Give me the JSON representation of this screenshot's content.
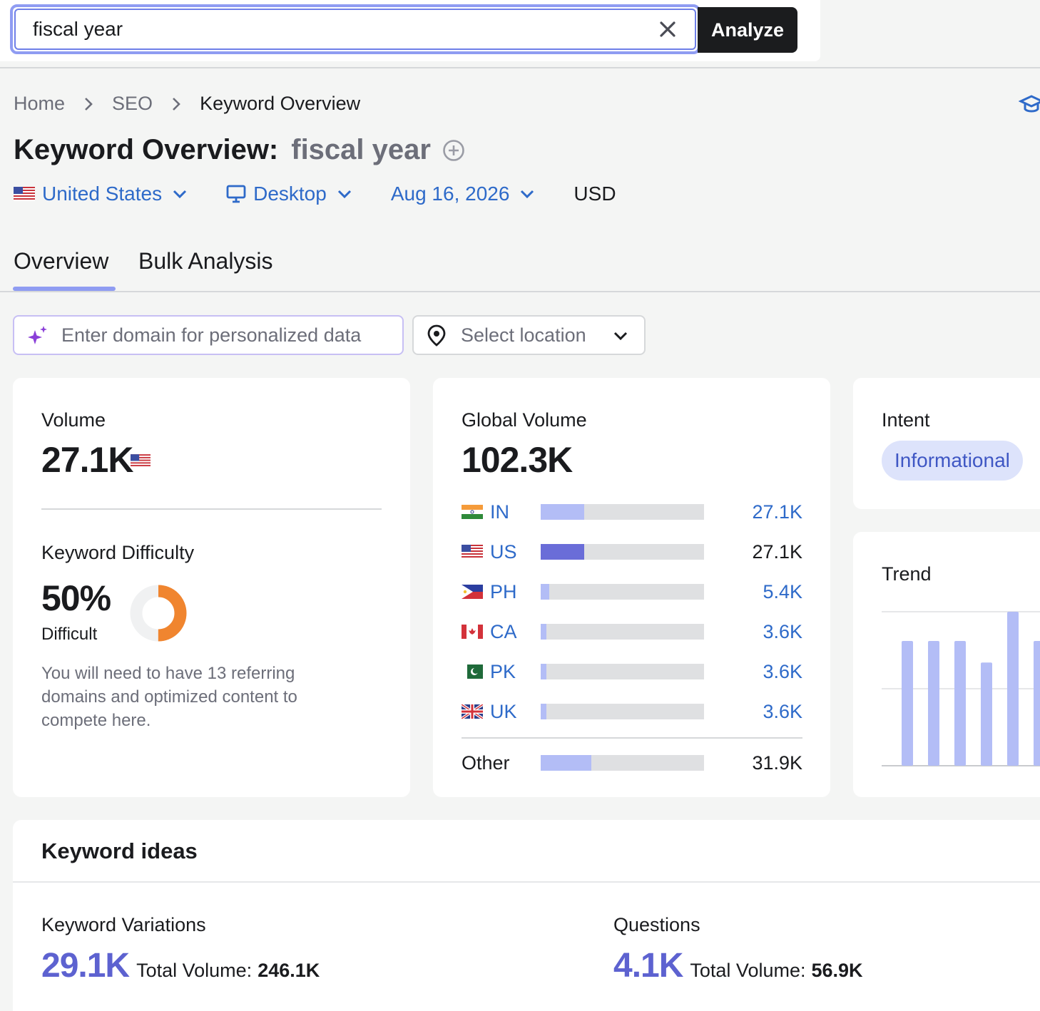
{
  "search": {
    "value": "fiscal year",
    "button": "Analyze"
  },
  "breadcrumb": [
    "Home",
    "SEO",
    "Keyword Overview"
  ],
  "title": {
    "prefix": "Keyword Overview:",
    "keyword": "fiscal year"
  },
  "filters": {
    "country": "United States",
    "device": "Desktop",
    "date": "Aug 16, 2026",
    "currency": "USD"
  },
  "tabs": [
    "Overview",
    "Bulk Analysis"
  ],
  "domain_input": {
    "placeholder": "Enter domain for personalized data"
  },
  "location_select": {
    "placeholder": "Select location"
  },
  "volume": {
    "label": "Volume",
    "value": "27.1K"
  },
  "keyword_difficulty": {
    "label": "Keyword Difficulty",
    "value": "50%",
    "level": "Difficult",
    "percent": 50,
    "description": "You will need to have 13 referring domains and optimized content to compete here."
  },
  "global_volume": {
    "label": "Global Volume",
    "value": "102.3K",
    "countries": [
      {
        "code": "IN",
        "value": "27.1K",
        "share": 0.265,
        "highlight": false
      },
      {
        "code": "US",
        "value": "27.1K",
        "share": 0.265,
        "highlight": true
      },
      {
        "code": "PH",
        "value": "5.4K",
        "share": 0.053,
        "highlight": false
      },
      {
        "code": "CA",
        "value": "3.6K",
        "share": 0.035,
        "highlight": false
      },
      {
        "code": "PK",
        "value": "3.6K",
        "share": 0.035,
        "highlight": false
      },
      {
        "code": "UK",
        "value": "3.6K",
        "share": 0.035,
        "highlight": false
      }
    ],
    "other": {
      "label": "Other",
      "value": "31.9K",
      "share": 0.31
    }
  },
  "intent": {
    "label": "Intent",
    "value": "Informational"
  },
  "trend": {
    "label": "Trend",
    "values": [
      0.81,
      0.81,
      0.81,
      0.67,
      1.0,
      0.81
    ]
  },
  "keyword_ideas": {
    "title": "Keyword ideas",
    "variations": {
      "label": "Keyword Variations",
      "value": "29.1K",
      "total_label": "Total Volume:",
      "total": "246.1K"
    },
    "questions": {
      "label": "Questions",
      "value": "4.1K",
      "total_label": "Total Volume:",
      "total": "56.9K"
    }
  },
  "colors": {
    "accent": "#8f9cf2",
    "link": "#2e6ac9",
    "kd_orange": "#f0852f",
    "bar_light": "#b3bdf6",
    "bar_dark": "#6a6dd8"
  }
}
